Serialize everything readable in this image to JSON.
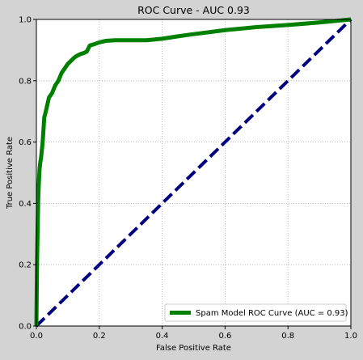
{
  "colors": {
    "figure_background": "#d3d3d3",
    "plot_background": "#ffffff",
    "roc_line": "#008000",
    "diagonal_line": "#000080",
    "grid": "#a9a9a9"
  },
  "chart_data": {
    "type": "line",
    "title": "ROC Curve - AUC 0.93",
    "xlabel": "False Positive Rate",
    "ylabel": "True Positive Rate",
    "xlim": [
      0,
      1
    ],
    "ylim": [
      0,
      1
    ],
    "grid": true,
    "legend_position": "bottom-right",
    "x_ticks": [
      "0.0",
      "0.2",
      "0.4",
      "0.6",
      "0.8",
      "1.0"
    ],
    "y_ticks": [
      "0.0",
      "0.2",
      "0.4",
      "0.6",
      "0.8",
      "1.0"
    ],
    "series": [
      {
        "name": "Spam Model ROC Curve (AUC = 0.93)",
        "style": "solid",
        "color": "#008000",
        "x": [
          0,
          0.002,
          0.004,
          0.006,
          0.008,
          0.01,
          0.012,
          0.015,
          0.02,
          0.025,
          0.03,
          0.04,
          0.05,
          0.06,
          0.07,
          0.08,
          0.09,
          0.1,
          0.11,
          0.12,
          0.13,
          0.14,
          0.15,
          0.16,
          0.17,
          0.18,
          0.2,
          0.22,
          0.25,
          0.3,
          0.35,
          0.4,
          0.45,
          0.5,
          0.6,
          0.7,
          0.8,
          0.9,
          1.0
        ],
        "y": [
          0,
          0.2,
          0.32,
          0.42,
          0.47,
          0.51,
          0.53,
          0.55,
          0.6,
          0.68,
          0.7,
          0.745,
          0.76,
          0.785,
          0.8,
          0.825,
          0.84,
          0.855,
          0.865,
          0.875,
          0.882,
          0.887,
          0.89,
          0.895,
          0.915,
          0.918,
          0.925,
          0.93,
          0.932,
          0.932,
          0.932,
          0.937,
          0.945,
          0.952,
          0.965,
          0.975,
          0.982,
          0.99,
          1.0
        ]
      },
      {
        "style": "dashed",
        "color": "#000080",
        "x": [
          0,
          1
        ],
        "y": [
          0,
          1
        ]
      }
    ]
  }
}
